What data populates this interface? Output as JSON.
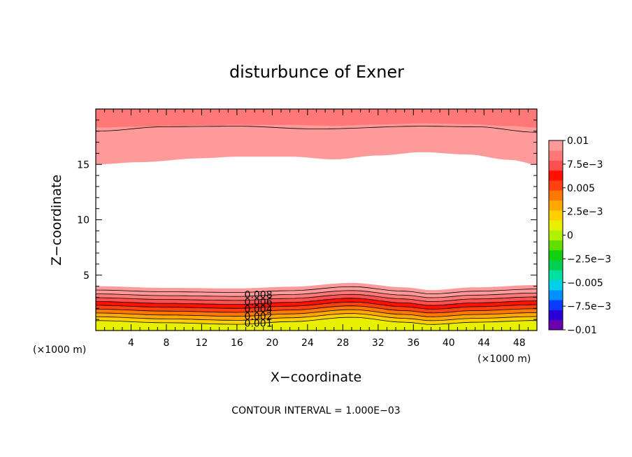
{
  "chart_data": {
    "type": "contour",
    "title": "disturbunce of Exner",
    "xlabel": "X−coordinate",
    "ylabel": "Z−coordinate",
    "x_unit_left": "(×1000 m)",
    "x_unit_right": "(×1000 m)",
    "xlim": [
      0,
      50
    ],
    "ylim": [
      0,
      20
    ],
    "x_ticks": [
      "4",
      "8",
      "12",
      "16",
      "20",
      "24",
      "28",
      "32",
      "36",
      "40",
      "44",
      "48"
    ],
    "x_tick_values": [
      4,
      8,
      12,
      16,
      20,
      24,
      28,
      32,
      36,
      40,
      44,
      48
    ],
    "y_ticks": [
      "5",
      "10",
      "15"
    ],
    "y_tick_values": [
      5,
      10,
      15
    ],
    "contour_labels": [
      "0.008",
      "0.006",
      "0.004",
      "0.002",
      "0.001"
    ],
    "contour_label_levels": [
      0.008,
      0.006,
      0.004,
      0.002,
      0.001
    ],
    "contour_label_x": 17,
    "note": "CONTOUR INTERVAL = 1.000E−03",
    "colorbar": {
      "labels": [
        "0.01",
        "7.5e−3",
        "0.005",
        "2.5e−3",
        "0",
        "−2.5e−3",
        "−0.005",
        "−7.5e−3",
        "−0.01"
      ],
      "label_values": [
        0.01,
        0.0075,
        0.005,
        0.0025,
        0,
        -0.0025,
        -0.005,
        -0.0075,
        -0.01
      ],
      "colors": [
        "#6a00b0",
        "#2a00d8",
        "#0a3cff",
        "#0090ff",
        "#00d0e8",
        "#00e0a0",
        "#00d050",
        "#10d010",
        "#60e000",
        "#b0f000",
        "#e8f000",
        "#ffd000",
        "#ffa800",
        "#ff7800",
        "#ff4010",
        "#ff1000",
        "#ff5050",
        "#ff7878",
        "#ff9a9a"
      ]
    },
    "bottom_layer": {
      "top_profile": {
        "x": [
          0,
          8,
          16,
          22,
          29,
          35,
          38,
          43,
          50
        ],
        "z": [
          4.0,
          3.85,
          3.8,
          3.95,
          4.3,
          3.9,
          3.65,
          3.9,
          4.1
        ]
      },
      "bottom_profile": {
        "x": [
          0,
          8,
          16,
          22,
          29,
          35,
          38,
          43,
          50
        ],
        "z": [
          0.55,
          0.35,
          0.2,
          0.45,
          0.85,
          0.4,
          0.2,
          0.4,
          0.55
        ]
      },
      "levels": [
        0.0095,
        0.009,
        0.008,
        0.007,
        0.006,
        0.005,
        0.004,
        0.003,
        0.002,
        0.001
      ]
    },
    "top_layer": {
      "bottom_profile": {
        "x": [
          0,
          5,
          12,
          16,
          22,
          27,
          32,
          37,
          42,
          47,
          50
        ],
        "z": [
          15.0,
          15.2,
          15.55,
          15.7,
          15.7,
          15.45,
          15.8,
          16.1,
          15.9,
          15.4,
          15.0
        ]
      },
      "top_z": 20,
      "levels": [
        0.0095,
        0.009,
        0.008
      ],
      "line_level_z": [
        18.0,
        18.4,
        18.45,
        18.2,
        18.45,
        18.4,
        17.9
      ]
    }
  }
}
